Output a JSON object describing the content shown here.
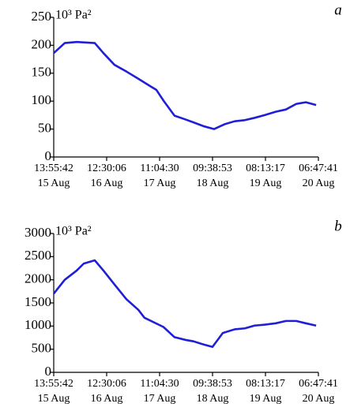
{
  "chart_data": [
    {
      "type": "line",
      "panel": "a",
      "unit_label": "10³ Pa²",
      "x": [
        0,
        4.7,
        9.8,
        17.5,
        21.2,
        25.9,
        31.0,
        36.1,
        41.1,
        43.8,
        46.8,
        51.5,
        56.3,
        59.6,
        64.0,
        68.4,
        73.1,
        77.2,
        81.5,
        85.6,
        90.0,
        94.7,
        99.0,
        103.4,
        107.5,
        111.9
      ],
      "values": [
        186,
        204,
        206,
        204,
        186,
        165,
        153,
        140,
        127,
        120,
        101,
        74,
        67,
        62,
        55,
        50,
        59,
        64,
        66,
        70,
        75,
        81,
        85,
        95,
        98,
        93
      ],
      "color": "#1f1fd6",
      "xlim": [
        0,
        112.87
      ],
      "xticks": [
        {
          "value": 0,
          "label": "13:55:42"
        },
        {
          "value": 22.57,
          "label": "12:30:06"
        },
        {
          "value": 45.15,
          "label": "11:04:30"
        },
        {
          "value": 67.72,
          "label": "09:38:53"
        },
        {
          "value": 90.3,
          "label": "08:13:17"
        },
        {
          "value": 112.87,
          "label": "06:47:41"
        }
      ],
      "xtick_dates": [
        "15 Aug",
        "16 Aug",
        "17 Aug",
        "18 Aug",
        "19 Aug",
        "20 Aug"
      ],
      "ylim": [
        0,
        250
      ],
      "yticks": [
        0,
        50,
        100,
        150,
        200,
        250
      ]
    },
    {
      "type": "line",
      "panel": "b",
      "unit_label": "10³ Pa²",
      "x": [
        0,
        4.7,
        9.8,
        12.8,
        17.5,
        21.2,
        25.9,
        31.0,
        36.1,
        38.7,
        46.8,
        51.5,
        56.3,
        59.6,
        64.0,
        67.7,
        72.1,
        77.2,
        81.5,
        85.6,
        90.0,
        94.7,
        99.0,
        103.4,
        107.5,
        111.9
      ],
      "values": [
        1700,
        2000,
        2200,
        2350,
        2420,
        2200,
        1900,
        1580,
        1350,
        1180,
        980,
        760,
        700,
        670,
        600,
        550,
        850,
        930,
        950,
        1010,
        1030,
        1060,
        1110,
        1110,
        1060,
        1010
      ],
      "color": "#1f1fd6",
      "xlim": [
        0,
        112.87
      ],
      "xticks": [
        {
          "value": 0,
          "label": "13:55:42"
        },
        {
          "value": 22.57,
          "label": "12:30:06"
        },
        {
          "value": 45.15,
          "label": "11:04:30"
        },
        {
          "value": 67.72,
          "label": "09:38:53"
        },
        {
          "value": 90.3,
          "label": "08:13:17"
        },
        {
          "value": 112.87,
          "label": "06:47:41"
        }
      ],
      "xtick_dates": [
        "15 Aug",
        "16 Aug",
        "17 Aug",
        "18 Aug",
        "19 Aug",
        "20 Aug"
      ],
      "ylim": [
        0,
        3000
      ],
      "yticks": [
        0,
        500,
        1000,
        1500,
        2000,
        2500,
        3000
      ]
    }
  ]
}
